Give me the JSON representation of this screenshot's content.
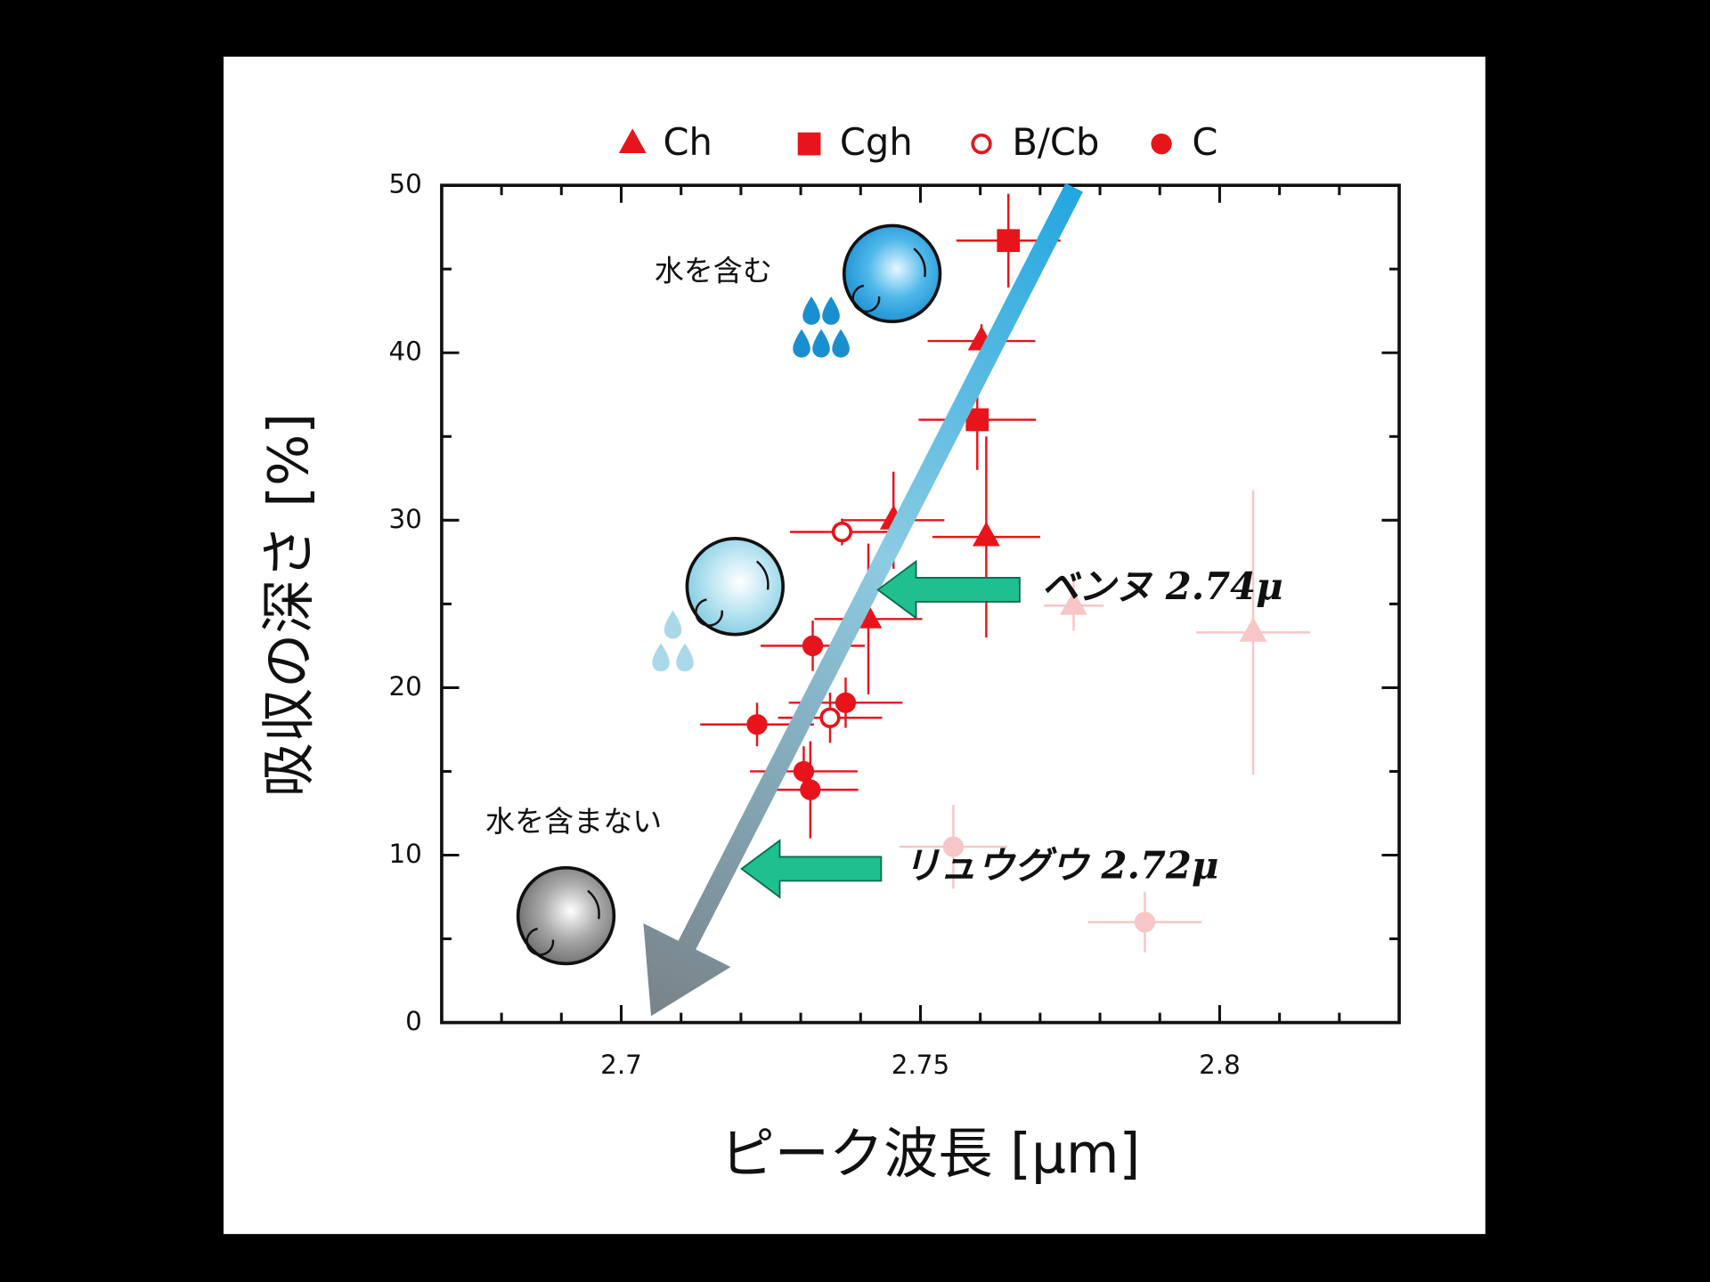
{
  "chart_data": {
    "type": "scatter",
    "x_label": "ピーク波長 [μm]",
    "y_label": "吸収の深さ [%]",
    "xlim": [
      2.67,
      2.83
    ],
    "ylim": [
      0,
      50
    ],
    "xticks": [
      2.7,
      2.75,
      2.8
    ],
    "yticks": [
      0,
      10,
      20,
      30,
      40,
      50
    ],
    "xminorticks": [
      2.68,
      2.69,
      2.71,
      2.72,
      2.73,
      2.74,
      2.76,
      2.77,
      2.78,
      2.79,
      2.81,
      2.82
    ],
    "yminorticks": [
      5,
      15,
      25,
      35,
      45
    ],
    "annotations": [
      "水を含む",
      "水を含まない",
      "ベンヌ 2.74μ",
      "リュウグウ 2.72μ"
    ],
    "series": [
      {
        "name": "Ch",
        "color": "#e8141b",
        "marker": "triangle",
        "filled": true,
        "x": [
          2.7602,
          2.7455,
          2.761,
          2.7413,
          2.7756,
          2.8056
        ],
        "y": [
          40.7,
          30.0,
          29.0,
          24.1,
          24.9,
          23.3
        ],
        "xerr": [
          0.009,
          0.0085,
          0.009,
          0.009,
          0.005,
          0.0095
        ],
        "yerr": [
          1.0,
          2.9,
          6.0,
          4.5,
          1.5,
          8.5
        ],
        "point_colors": [
          "#e8141b",
          "#e8141b",
          "#e8141b",
          "#e8141b",
          "#f7c6c6",
          "#f7c6c6"
        ]
      },
      {
        "name": "Cgh",
        "color": "#e8141b",
        "marker": "square",
        "filled": true,
        "x": [
          2.7647,
          2.7595
        ],
        "y": [
          46.7,
          36.0
        ],
        "xerr": [
          0.0087,
          0.0098
        ],
        "yerr": [
          2.8,
          3.0
        ],
        "point_colors": [
          "#e8141b",
          "#e8141b"
        ]
      },
      {
        "name": "B/Cb",
        "color": "#e8141b",
        "marker": "circle",
        "filled": false,
        "x": [
          2.7369,
          2.7349
        ],
        "y": [
          29.3,
          18.2
        ],
        "xerr": [
          0.0087,
          0.0087
        ],
        "yerr": [
          0.8,
          1.5
        ],
        "point_colors": [
          "#e8141b",
          "#e8141b"
        ]
      },
      {
        "name": "C",
        "color": "#e8141b",
        "marker": "circle",
        "filled": true,
        "x": [
          2.732,
          2.7375,
          2.7227,
          2.7305,
          2.7316,
          2.7555,
          2.7875
        ],
        "y": [
          22.5,
          19.1,
          17.8,
          15.0,
          13.9,
          10.5,
          6.0
        ],
        "xerr": [
          0.0087,
          0.0095,
          0.0095,
          0.009,
          0.008,
          0.009,
          0.0095
        ],
        "yerr": [
          1.5,
          1.5,
          1.3,
          1.5,
          2.9,
          2.5,
          1.8
        ],
        "point_colors": [
          "#e8141b",
          "#e8141b",
          "#e8141b",
          "#e8141b",
          "#e8141b",
          "#f7c6c6",
          "#f7c6c6"
        ]
      }
    ]
  }
}
